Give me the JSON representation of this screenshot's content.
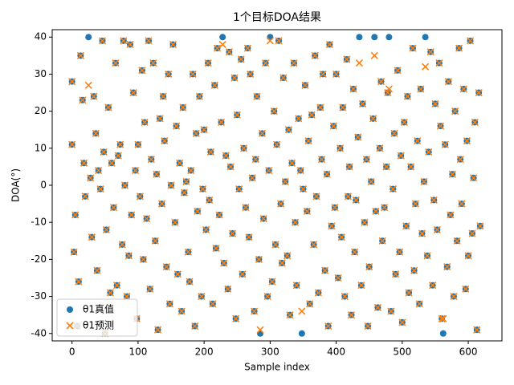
{
  "chart_data": {
    "type": "scatter",
    "title": "1个目标DOA结果",
    "xlabel": "Sample index",
    "ylabel": "DOA(°)",
    "xlim": [
      -30,
      651
    ],
    "ylim": [
      -42,
      42
    ],
    "xticks": [
      0,
      100,
      200,
      300,
      400,
      500,
      600
    ],
    "yticks": [
      -40,
      -30,
      -20,
      -10,
      0,
      10,
      20,
      30,
      40
    ],
    "legend": "lower left",
    "x": [
      0,
      0,
      3,
      5,
      8,
      10,
      13,
      16,
      18,
      20,
      25,
      28,
      30,
      33,
      36,
      38,
      40,
      43,
      46,
      48,
      50,
      52,
      55,
      58,
      60,
      63,
      66,
      68,
      70,
      73,
      76,
      78,
      80,
      83,
      86,
      88,
      90,
      93,
      96,
      98,
      100,
      103,
      106,
      108,
      110,
      113,
      116,
      118,
      120,
      123,
      126,
      128,
      130,
      133,
      136,
      138,
      140,
      143,
      146,
      148,
      150,
      153,
      156,
      158,
      160,
      163,
      166,
      168,
      170,
      173,
      176,
      178,
      180,
      183,
      186,
      188,
      190,
      193,
      196,
      198,
      200,
      203,
      206,
      208,
      210,
      213,
      216,
      218,
      220,
      223,
      226,
      228,
      230,
      233,
      236,
      238,
      240,
      243,
      246,
      248,
      250,
      253,
      256,
      258,
      260,
      263,
      266,
      268,
      270,
      273,
      276,
      278,
      280,
      283,
      285,
      288,
      290,
      293,
      296,
      298,
      300,
      303,
      306,
      308,
      310,
      313,
      316,
      318,
      320,
      323,
      326,
      328,
      330,
      333,
      336,
      338,
      340,
      343,
      346,
      348,
      350,
      353,
      356,
      358,
      360,
      363,
      366,
      368,
      370,
      373,
      376,
      378,
      380,
      383,
      386,
      388,
      390,
      393,
      396,
      398,
      400,
      403,
      406,
      408,
      410,
      413,
      416,
      418,
      420,
      423,
      426,
      428,
      430,
      433,
      435,
      438,
      440,
      443,
      446,
      448,
      450,
      453,
      456,
      458,
      460,
      463,
      466,
      468,
      470,
      473,
      476,
      478,
      480,
      483,
      486,
      488,
      490,
      493,
      496,
      498,
      500,
      503,
      506,
      508,
      510,
      513,
      516,
      518,
      520,
      523,
      526,
      528,
      530,
      533,
      535,
      538,
      540,
      543,
      546,
      548,
      550,
      553,
      556,
      558,
      560,
      562,
      565,
      568,
      570,
      573,
      576,
      578,
      580,
      583,
      586,
      588,
      590,
      593,
      596,
      598,
      600,
      603,
      606,
      608,
      610,
      613,
      616,
      618
    ],
    "series": [
      {
        "name": "θ1真值",
        "color": "#1f77b4",
        "marker": "o",
        "values": [
          11,
          28,
          -18,
          -8,
          -38,
          -26,
          35,
          23,
          6,
          -3,
          40,
          2,
          -14,
          24,
          14,
          -23,
          4,
          -1,
          39,
          9,
          -40,
          -12,
          21,
          -29,
          6,
          -6,
          33,
          -27,
          8,
          11,
          -16,
          39,
          0,
          -30,
          -19,
          38,
          -8,
          25,
          4,
          -36,
          11,
          -3,
          31,
          -20,
          17,
          -9,
          39,
          -28,
          7,
          33,
          -15,
          3,
          -39,
          18,
          -5,
          24,
          12,
          -22,
          30,
          -32,
          0,
          38,
          -10,
          16,
          -24,
          6,
          -34,
          21,
          -2,
          1,
          -18,
          -26,
          4,
          30,
          -38,
          14,
          -7,
          24,
          -30,
          -1,
          15,
          -12,
          33,
          -4,
          9,
          -32,
          27,
          -17,
          37,
          -8,
          17,
          40,
          -21,
          8,
          -28,
          36,
          5,
          -13,
          29,
          -36,
          19,
          -1,
          34,
          -24,
          10,
          -6,
          37,
          -14,
          30,
          2,
          -34,
          7,
          24,
          -20,
          -40,
          14,
          -9,
          33,
          -30,
          4,
          40,
          -26,
          20,
          -16,
          11,
          39,
          -5,
          -21,
          29,
          1,
          -19,
          15,
          -35,
          6,
          33,
          -10,
          -27,
          18,
          4,
          -40,
          -1,
          27,
          -7,
          12,
          -32,
          19,
          -16,
          35,
          -3,
          -29,
          21,
          7,
          30,
          -23,
          3,
          -38,
          38,
          -11,
          16,
          -6,
          30,
          -25,
          10,
          -14,
          21,
          -30,
          34,
          -3,
          5,
          -35,
          26,
          -18,
          -4,
          13,
          40,
          -27,
          22,
          -10,
          7,
          -38,
          -22,
          1,
          18,
          40,
          -7,
          -33,
          10,
          28,
          -15,
          -6,
          5,
          25,
          40,
          -34,
          -1,
          14,
          -24,
          31,
          -18,
          8,
          -37,
          17,
          -11,
          24,
          -29,
          5,
          37,
          -23,
          -5,
          12,
          -32,
          26,
          -13,
          1,
          40,
          -19,
          9,
          36,
          -27,
          -4,
          22,
          -12,
          33,
          16,
          -36,
          -40,
          11,
          -22,
          28,
          -8,
          3,
          -30,
          20,
          -15,
          37,
          7,
          -5,
          26,
          -28,
          12,
          -19,
          39,
          -13,
          2,
          17,
          -39,
          25,
          -11
        ]
      },
      {
        "name": "θ1预测",
        "color": "#ff7f0e",
        "marker": "x",
        "values": [
          11,
          28,
          -18,
          -8,
          -38,
          -26,
          35,
          23,
          6,
          -3,
          27,
          2,
          -14,
          24,
          14,
          -23,
          4,
          -1,
          39,
          9,
          -40,
          -12,
          21,
          -29,
          6,
          -6,
          33,
          -27,
          8,
          11,
          -16,
          39,
          0,
          -30,
          -19,
          38,
          -8,
          25,
          4,
          -36,
          11,
          -3,
          31,
          -20,
          17,
          -9,
          39,
          -28,
          7,
          33,
          -15,
          3,
          -39,
          18,
          -5,
          24,
          12,
          -22,
          30,
          -32,
          0,
          38,
          -10,
          16,
          -24,
          6,
          -34,
          21,
          -2,
          1,
          -18,
          -26,
          4,
          30,
          -38,
          14,
          -7,
          24,
          -30,
          -1,
          15,
          -12,
          33,
          -4,
          9,
          -32,
          27,
          -17,
          37,
          -8,
          17,
          38,
          -21,
          8,
          -28,
          36,
          5,
          -13,
          29,
          -36,
          19,
          -1,
          34,
          -24,
          10,
          -6,
          37,
          -14,
          30,
          2,
          -34,
          7,
          24,
          -20,
          -39,
          14,
          -9,
          33,
          -30,
          4,
          39,
          -26,
          20,
          -16,
          11,
          39,
          -5,
          -21,
          29,
          1,
          -19,
          15,
          -35,
          6,
          33,
          -10,
          -27,
          18,
          4,
          -34,
          -1,
          27,
          -7,
          12,
          -32,
          19,
          -16,
          35,
          -3,
          -29,
          21,
          7,
          30,
          -23,
          3,
          -38,
          38,
          -11,
          16,
          -6,
          30,
          -25,
          10,
          -14,
          21,
          -30,
          34,
          -3,
          5,
          -35,
          26,
          -18,
          -4,
          13,
          33,
          -27,
          22,
          -10,
          7,
          -38,
          -22,
          1,
          18,
          35,
          -7,
          -33,
          10,
          28,
          -15,
          -6,
          5,
          25,
          26,
          -34,
          -1,
          14,
          -24,
          31,
          -18,
          8,
          -37,
          17,
          -11,
          24,
          -29,
          5,
          37,
          -23,
          -5,
          12,
          -32,
          26,
          -13,
          1,
          32,
          -19,
          9,
          36,
          -27,
          -4,
          22,
          -12,
          33,
          16,
          -36,
          -36,
          11,
          -22,
          28,
          -8,
          3,
          -30,
          20,
          -15,
          37,
          7,
          -5,
          26,
          -28,
          12,
          -19,
          39,
          -13,
          2,
          17,
          -39,
          25,
          -11
        ]
      }
    ]
  }
}
